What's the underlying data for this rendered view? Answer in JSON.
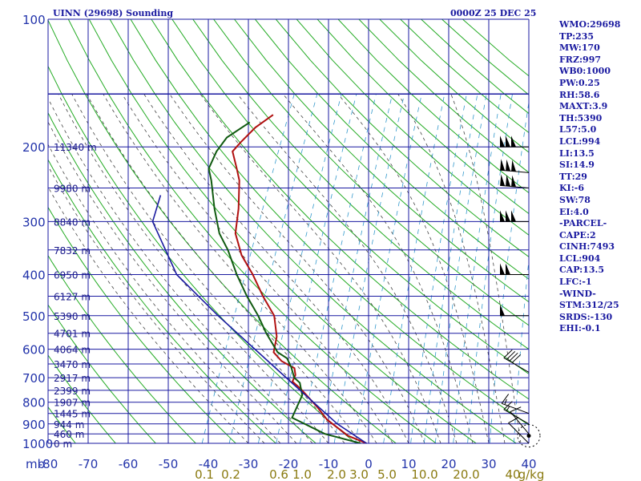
{
  "header": {
    "station_title": "UINN (29698) Sounding",
    "time_title": "0000Z 25 DEC 25"
  },
  "indices": [
    "WMO:29698",
    "TP:235",
    "MW:170",
    "FRZ:997",
    "WB0:1000",
    "PW:0.25",
    "RH:58.6",
    "MAXT:3.9",
    "TH:5390",
    "L57:5.0",
    "LCL:994",
    "LI:13.5",
    "SI:14.9",
    "TT:29",
    "KI:-6",
    "SW:78",
    "EI:4.0",
    "-PARCEL-",
    "CAPE:2",
    "CINH:7493",
    "LCL:904",
    "CAP:13.5",
    "LFC:-1",
    "-WIND-",
    "STM:312/25",
    "SRDS:-130",
    "EHI:-0.1"
  ],
  "colors": {
    "grid": "#1a1aa0",
    "dry_adiabat": "#22aa22",
    "moist_adiabat": "#444444",
    "mixing_ratio": "#3399cc",
    "temperature": "#b01010",
    "dewpoint": "#105a10",
    "parcel": "#1a1aa0"
  },
  "chart_data": {
    "type": "line",
    "diagram": "skew-T log-p",
    "pressure_axis_label": "mb",
    "pressure_ticks": [
      100,
      200,
      300,
      400,
      500,
      600,
      700,
      800,
      900,
      1000
    ],
    "temperature_ticks": [
      -80,
      -70,
      -60,
      -50,
      -40,
      -30,
      -20,
      -10,
      0,
      10,
      20,
      30,
      40
    ],
    "mixing_ratio_labels": [
      "0.1",
      "0.2",
      "0.6",
      "1.0",
      "2.0",
      "3.0",
      "5.0",
      "10.0",
      "20.0",
      "40"
    ],
    "mixing_ratio_unit": "g/kg",
    "height_labels": [
      {
        "p": 200,
        "text": "11340 m"
      },
      {
        "p": 250,
        "text": "9980 m"
      },
      {
        "p": 300,
        "text": "8840 m"
      },
      {
        "p": 350,
        "text": "7832 m"
      },
      {
        "p": 400,
        "text": "6950 m"
      },
      {
        "p": 450,
        "text": "6127 m"
      },
      {
        "p": 500,
        "text": "5390 m"
      },
      {
        "p": 550,
        "text": "4701 m"
      },
      {
        "p": 600,
        "text": "4064 m"
      },
      {
        "p": 650,
        "text": "3470 m"
      },
      {
        "p": 700,
        "text": "2917 m"
      },
      {
        "p": 750,
        "text": "2399 m"
      },
      {
        "p": 800,
        "text": "1907 m"
      },
      {
        "p": 850,
        "text": "1445 m"
      },
      {
        "p": 900,
        "text": "944 m"
      },
      {
        "p": 950,
        "text": "460 m"
      },
      {
        "p": 1000,
        "text": "0 m"
      }
    ],
    "series": [
      {
        "key": "temperature",
        "points": [
          {
            "p": 1000,
            "t": -0.5
          },
          {
            "p": 960,
            "t": -6
          },
          {
            "p": 880,
            "t": -13
          },
          {
            "p": 820,
            "t": -17
          },
          {
            "p": 745,
            "t": -23
          },
          {
            "p": 715,
            "t": -26
          },
          {
            "p": 690,
            "t": -26
          },
          {
            "p": 665,
            "t": -27
          },
          {
            "p": 640,
            "t": -31
          },
          {
            "p": 610,
            "t": -34
          },
          {
            "p": 560,
            "t": -35
          },
          {
            "p": 500,
            "t": -38
          },
          {
            "p": 450,
            "t": -43
          },
          {
            "p": 400,
            "t": -48
          },
          {
            "p": 360,
            "t": -53
          },
          {
            "p": 320,
            "t": -57
          },
          {
            "p": 280,
            "t": -59
          },
          {
            "p": 240,
            "t": -62
          },
          {
            "p": 225,
            "t": -64
          },
          {
            "p": 205,
            "t": -67
          },
          {
            "p": 195,
            "t": -66
          },
          {
            "p": 180,
            "t": -64
          },
          {
            "p": 168,
            "t": -61
          }
        ]
      },
      {
        "key": "dewpoint",
        "points": [
          {
            "p": 1000,
            "t": -2
          },
          {
            "p": 950,
            "t": -12
          },
          {
            "p": 870,
            "t": -22
          },
          {
            "p": 850,
            "t": -22
          },
          {
            "p": 770,
            "t": -22
          },
          {
            "p": 720,
            "t": -24
          },
          {
            "p": 700,
            "t": -26
          },
          {
            "p": 660,
            "t": -28
          },
          {
            "p": 630,
            "t": -30
          },
          {
            "p": 610,
            "t": -33
          },
          {
            "p": 550,
            "t": -38
          },
          {
            "p": 500,
            "t": -42
          },
          {
            "p": 450,
            "t": -47
          },
          {
            "p": 400,
            "t": -52
          },
          {
            "p": 350,
            "t": -57
          },
          {
            "p": 320,
            "t": -61
          },
          {
            "p": 280,
            "t": -65
          },
          {
            "p": 240,
            "t": -69
          },
          {
            "p": 225,
            "t": -71
          },
          {
            "p": 205,
            "t": -71
          },
          {
            "p": 190,
            "t": -70
          },
          {
            "p": 175,
            "t": -66
          }
        ]
      },
      {
        "key": "parcel",
        "points": [
          {
            "p": 1000,
            "t": -0.5
          },
          {
            "p": 900,
            "t": -10
          },
          {
            "p": 700,
            "t": -28
          },
          {
            "p": 500,
            "t": -52
          },
          {
            "p": 400,
            "t": -67
          },
          {
            "p": 300,
            "t": -79
          },
          {
            "p": 260,
            "t": -80
          }
        ]
      }
    ],
    "wind_barbs": [
      {
        "p": 200,
        "speed_kt": 150,
        "dir": 270
      },
      {
        "p": 230,
        "speed_kt": 150,
        "dir": 275
      },
      {
        "p": 250,
        "speed_kt": 150,
        "dir": 275
      },
      {
        "p": 300,
        "speed_kt": 150,
        "dir": 270
      },
      {
        "p": 400,
        "speed_kt": 100,
        "dir": 270
      },
      {
        "p": 500,
        "speed_kt": 50,
        "dir": 270
      },
      {
        "p": 680,
        "speed_kt": 40,
        "dir": 300
      },
      {
        "p": 850,
        "speed_kt": 15,
        "dir": 290
      },
      {
        "p": 900,
        "speed_kt": 15,
        "dir": 300
      },
      {
        "p": 950,
        "speed_kt": 10,
        "dir": 320
      },
      {
        "p": 1000,
        "speed_kt": 10,
        "dir": 315
      }
    ]
  }
}
